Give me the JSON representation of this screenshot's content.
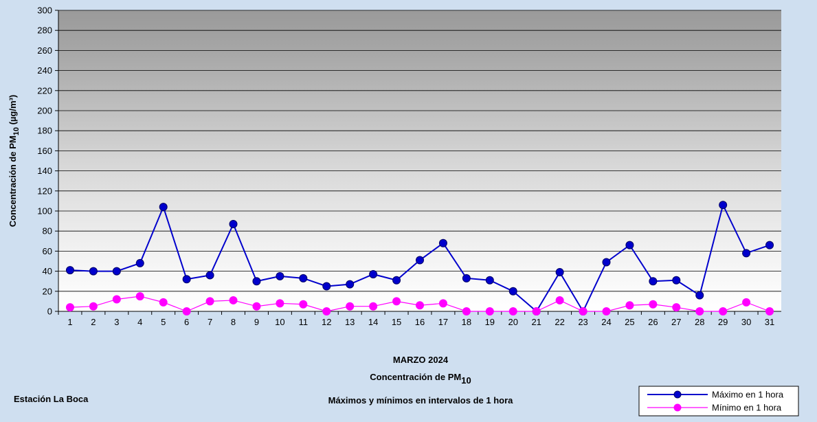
{
  "chart_data": {
    "type": "line",
    "title": "MARZO 2024",
    "subtitle": "Concentración de PM",
    "subtitle_sub": "10",
    "subtitle2": "Máximos y mínimos en intervalos de 1 hora",
    "annotation": "Estación La Boca",
    "y_label": "Concentración de PM",
    "y_label_sub": "10",
    "y_label_end": " (µg/m³)",
    "categories": [
      "1",
      "2",
      "3",
      "4",
      "5",
      "6",
      "7",
      "8",
      "9",
      "10",
      "11",
      "12",
      "13",
      "14",
      "15",
      "16",
      "17",
      "18",
      "19",
      "20",
      "21",
      "22",
      "23",
      "24",
      "25",
      "26",
      "27",
      "28",
      "29",
      "30",
      "31"
    ],
    "series": [
      {
        "name": "Máximo en 1 hora",
        "color": "#0000cc",
        "values": [
          41,
          40,
          40,
          48,
          104,
          32,
          36,
          87,
          30,
          35,
          33,
          25,
          27,
          37,
          31,
          51,
          68,
          33,
          31,
          20,
          0,
          39,
          0,
          49,
          66,
          30,
          31,
          16,
          106,
          58,
          66
        ]
      },
      {
        "name": "Mínimo en 1 hora",
        "color": "#ff00ff",
        "values": [
          4,
          5,
          12,
          15,
          9,
          0,
          10,
          11,
          5,
          8,
          7,
          0,
          5,
          5,
          10,
          6,
          8,
          0,
          0,
          0,
          0,
          11,
          0,
          0,
          6,
          7,
          4,
          0,
          0,
          9,
          0
        ]
      }
    ],
    "ylim": [
      0,
      300
    ],
    "yticks": [
      0,
      20,
      40,
      60,
      80,
      100,
      120,
      140,
      160,
      180,
      200,
      220,
      240,
      260,
      280,
      300
    ],
    "grid": true,
    "legend": "bottom-right"
  }
}
